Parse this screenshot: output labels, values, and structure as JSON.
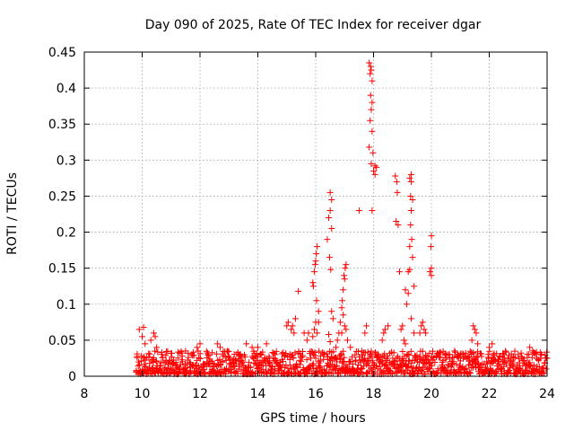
{
  "chart_data": {
    "type": "scatter",
    "title": "Day 090 of 2025, Rate Of TEC Index for receiver dgar",
    "xlabel": "GPS time / hours",
    "ylabel": "ROTI / TECUs",
    "xlim": [
      8,
      24
    ],
    "ylim": [
      0,
      0.45
    ],
    "xticks": [
      "8",
      "10",
      "12",
      "14",
      "16",
      "18",
      "20",
      "22",
      "24"
    ],
    "yticks": [
      "0",
      "0.05",
      "0.1",
      "0.15",
      "0.2",
      "0.25",
      "0.3",
      "0.35",
      "0.4",
      "0.45"
    ],
    "grid": true,
    "marker": "+",
    "color": "#ff0000",
    "series": [
      {
        "name": "ROTI",
        "points": [
          [
            9.9,
            0.065
          ],
          [
            10.0,
            0.055
          ],
          [
            10.05,
            0.068
          ],
          [
            10.1,
            0.045
          ],
          [
            10.3,
            0.05
          ],
          [
            10.4,
            0.06
          ],
          [
            10.45,
            0.055
          ],
          [
            10.5,
            0.04
          ],
          [
            11.0,
            0.032
          ],
          [
            11.5,
            0.035
          ],
          [
            11.9,
            0.04
          ],
          [
            12.0,
            0.045
          ],
          [
            12.6,
            0.045
          ],
          [
            12.7,
            0.04
          ],
          [
            13.6,
            0.045
          ],
          [
            13.8,
            0.04
          ],
          [
            14.0,
            0.04
          ],
          [
            14.3,
            0.045
          ],
          [
            14.6,
            0.03
          ],
          [
            15.0,
            0.07
          ],
          [
            15.05,
            0.075
          ],
          [
            15.15,
            0.065
          ],
          [
            15.2,
            0.07
          ],
          [
            15.25,
            0.06
          ],
          [
            15.3,
            0.08
          ],
          [
            15.4,
            0.118
          ],
          [
            15.6,
            0.06
          ],
          [
            15.7,
            0.05
          ],
          [
            15.75,
            0.06
          ],
          [
            15.9,
            0.055
          ],
          [
            15.95,
            0.065
          ],
          [
            16.0,
            0.075
          ],
          [
            16.05,
            0.06
          ],
          [
            15.9,
            0.13
          ],
          [
            15.92,
            0.125
          ],
          [
            15.95,
            0.145
          ],
          [
            15.98,
            0.155
          ],
          [
            16.0,
            0.16
          ],
          [
            16.02,
            0.17
          ],
          [
            16.05,
            0.18
          ],
          [
            16.03,
            0.105
          ],
          [
            16.1,
            0.09
          ],
          [
            16.1,
            0.075
          ],
          [
            16.4,
            0.19
          ],
          [
            16.45,
            0.22
          ],
          [
            16.5,
            0.23
          ],
          [
            16.55,
            0.245
          ],
          [
            16.5,
            0.255
          ],
          [
            16.55,
            0.205
          ],
          [
            16.48,
            0.165
          ],
          [
            16.52,
            0.148
          ],
          [
            16.55,
            0.09
          ],
          [
            16.6,
            0.08
          ],
          [
            16.45,
            0.058
          ],
          [
            16.5,
            0.048
          ],
          [
            16.7,
            0.04
          ],
          [
            16.75,
            0.05
          ],
          [
            16.8,
            0.06
          ],
          [
            16.85,
            0.075
          ],
          [
            16.9,
            0.095
          ],
          [
            16.92,
            0.105
          ],
          [
            16.95,
            0.12
          ],
          [
            16.98,
            0.14
          ],
          [
            17.0,
            0.135
          ],
          [
            17.02,
            0.15
          ],
          [
            17.05,
            0.155
          ],
          [
            16.95,
            0.085
          ],
          [
            17.0,
            0.07
          ],
          [
            17.05,
            0.065
          ],
          [
            16.9,
            0.06
          ],
          [
            17.1,
            0.05
          ],
          [
            17.2,
            0.04
          ],
          [
            17.5,
            0.23
          ],
          [
            17.6,
            0.035
          ],
          [
            17.7,
            0.06
          ],
          [
            17.75,
            0.07
          ],
          [
            17.85,
            0.435
          ],
          [
            17.9,
            0.43
          ],
          [
            17.92,
            0.425
          ],
          [
            17.88,
            0.42
          ],
          [
            17.95,
            0.41
          ],
          [
            17.9,
            0.39
          ],
          [
            17.95,
            0.38
          ],
          [
            17.92,
            0.37
          ],
          [
            17.88,
            0.355
          ],
          [
            17.95,
            0.34
          ],
          [
            17.85,
            0.318
          ],
          [
            17.98,
            0.31
          ],
          [
            17.92,
            0.295
          ],
          [
            18.05,
            0.292
          ],
          [
            18.1,
            0.29
          ],
          [
            18.0,
            0.285
          ],
          [
            18.05,
            0.28
          ],
          [
            17.95,
            0.23
          ],
          [
            18.3,
            0.05
          ],
          [
            18.35,
            0.06
          ],
          [
            18.4,
            0.065
          ],
          [
            18.5,
            0.07
          ],
          [
            18.75,
            0.278
          ],
          [
            18.8,
            0.27
          ],
          [
            18.82,
            0.255
          ],
          [
            18.78,
            0.215
          ],
          [
            18.85,
            0.21
          ],
          [
            18.9,
            0.145
          ],
          [
            19.0,
            0.07
          ],
          [
            18.95,
            0.065
          ],
          [
            19.05,
            0.05
          ],
          [
            19.1,
            0.045
          ],
          [
            19.1,
            0.12
          ],
          [
            19.15,
            0.1
          ],
          [
            19.2,
            0.115
          ],
          [
            19.25,
            0.148
          ],
          [
            19.2,
            0.145
          ],
          [
            19.3,
            0.28
          ],
          [
            19.25,
            0.275
          ],
          [
            19.3,
            0.27
          ],
          [
            19.28,
            0.25
          ],
          [
            19.35,
            0.245
          ],
          [
            19.3,
            0.23
          ],
          [
            19.28,
            0.21
          ],
          [
            19.32,
            0.19
          ],
          [
            19.25,
            0.18
          ],
          [
            19.35,
            0.165
          ],
          [
            19.4,
            0.125
          ],
          [
            19.3,
            0.08
          ],
          [
            19.4,
            0.06
          ],
          [
            19.6,
            0.06
          ],
          [
            19.65,
            0.07
          ],
          [
            19.7,
            0.075
          ],
          [
            19.75,
            0.065
          ],
          [
            19.8,
            0.06
          ],
          [
            20.0,
            0.195
          ],
          [
            19.98,
            0.18
          ],
          [
            20.0,
            0.15
          ],
          [
            19.95,
            0.145
          ],
          [
            20.0,
            0.14
          ],
          [
            20.5,
            0.03
          ],
          [
            20.8,
            0.035
          ],
          [
            21.0,
            0.03
          ],
          [
            21.45,
            0.07
          ],
          [
            21.5,
            0.065
          ],
          [
            21.55,
            0.06
          ],
          [
            21.4,
            0.05
          ],
          [
            21.6,
            0.045
          ],
          [
            22.0,
            0.04
          ],
          [
            22.1,
            0.045
          ],
          [
            22.5,
            0.03
          ],
          [
            23.0,
            0.03
          ],
          [
            23.4,
            0.04
          ],
          [
            23.5,
            0.035
          ],
          [
            23.8,
            0.03
          ],
          [
            24.0,
            0.025
          ]
        ]
      }
    ],
    "baseline_band": {
      "description": "dense noise floor of many samples",
      "x_range": [
        9.8,
        24.0
      ],
      "y_min": 0.0,
      "y_max": 0.035
    }
  }
}
